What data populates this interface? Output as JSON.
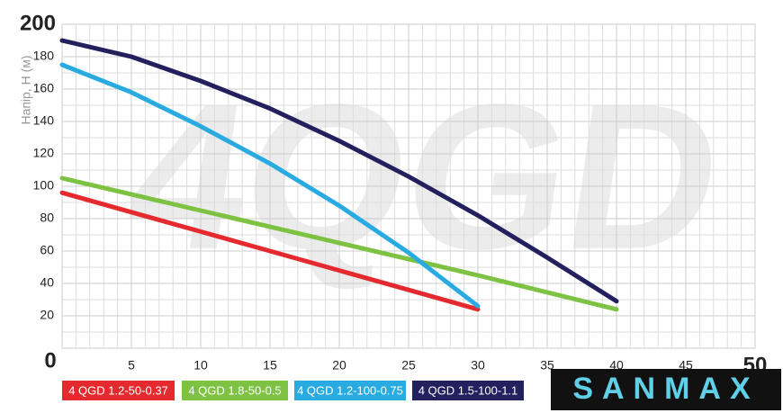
{
  "chart_data": {
    "type": "line",
    "y_label": "Напір, Н (м)",
    "watermark": "4QGD",
    "logo": "SANMAX",
    "xlim": [
      0,
      50
    ],
    "xticks": [
      0,
      5,
      10,
      15,
      20,
      25,
      30,
      35,
      40,
      45,
      50
    ],
    "ylim": [
      0,
      200
    ],
    "yticks": [
      20,
      40,
      60,
      80,
      100,
      120,
      140,
      160,
      180,
      200
    ],
    "grid": true,
    "series": [
      {
        "name": "4 QGD 1.2-50-0.37",
        "color": "#e52a2f",
        "x": [
          0,
          5,
          10,
          15,
          20,
          25,
          30
        ],
        "values": [
          96,
          84,
          72,
          60,
          48,
          36,
          24
        ]
      },
      {
        "name": "4 QGD 1.8-50-0.5",
        "color": "#7dc242",
        "x": [
          0,
          10,
          20,
          30,
          40
        ],
        "values": [
          105,
          85,
          65,
          45,
          24
        ]
      },
      {
        "name": "4 QGD 1.2-100-0.75",
        "color": "#29abe2",
        "x": [
          0,
          5,
          10,
          15,
          20,
          25,
          30
        ],
        "values": [
          175,
          158,
          137,
          114,
          88,
          59,
          26
        ]
      },
      {
        "name": "4 QGD 1.5-100-1.1",
        "color": "#23205e",
        "x": [
          0,
          5,
          10,
          15,
          20,
          25,
          30,
          35,
          40
        ],
        "values": [
          190,
          180,
          165,
          148,
          128,
          106,
          82,
          56,
          29
        ]
      }
    ]
  }
}
